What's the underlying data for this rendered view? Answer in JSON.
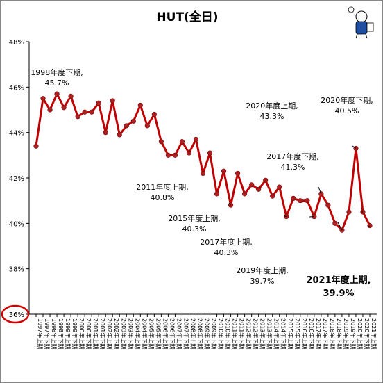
{
  "chart_data": {
    "type": "line",
    "title": "HUT(全日)",
    "xlabel": "",
    "ylabel": "",
    "ylim": [
      36,
      48
    ],
    "yticks": [
      "36%",
      "38%",
      "40%",
      "42%",
      "44%",
      "46%",
      "48%"
    ],
    "grid": false,
    "line_color": "#c00000",
    "marker_color": "#b02020",
    "highlight_tick": "36%",
    "categories": [
      "1997年上期",
      "1997年下期",
      "1998年上期",
      "1998年下期",
      "1999年上期",
      "1999年下期",
      "2000年上期",
      "2000年下期",
      "2001年上期",
      "2001年下期",
      "2002年上期",
      "2002年下期",
      "2003年上期",
      "2003年下期",
      "2004年上期",
      "2004年下期",
      "2005年上期",
      "2005年下期",
      "2006年上期",
      "2006年下期",
      "2007年上期",
      "2007年下期",
      "2008年上期",
      "2008年下期",
      "2009年上期",
      "2009年下期",
      "2010年上期",
      "2010年下期",
      "2011年上期",
      "2011年下期",
      "2012年上期",
      "2012年下期",
      "2013年上期",
      "2013年下期",
      "2014年上期",
      "2014年下期",
      "2015年上期",
      "2015年下期",
      "2016年上期",
      "2016年下期",
      "2017年上期",
      "2017年下期",
      "2018年上期",
      "2018年下期",
      "2019年上期",
      "2019年下期",
      "2020年上期",
      "2020年下期",
      "2021年上期"
    ],
    "series": [
      {
        "values": [
          43.4,
          45.5,
          45.0,
          45.7,
          45.1,
          45.6,
          44.7,
          44.9,
          44.9,
          45.3,
          44.0,
          45.4,
          43.9,
          44.3,
          44.5,
          45.2,
          44.3,
          44.8,
          43.6,
          43.0,
          43.0,
          43.6,
          43.1,
          43.7,
          42.2,
          43.1,
          41.3,
          42.3,
          40.8,
          42.2,
          41.3,
          41.7,
          41.5,
          41.9,
          41.2,
          41.6,
          40.3,
          41.1,
          41.0,
          41.0,
          40.3,
          41.3,
          40.8,
          40.0,
          39.7,
          40.5,
          43.3,
          40.5,
          39.9
        ]
      }
    ],
    "annotations": [
      {
        "index": 3,
        "line1": "1998年度下期,",
        "line2": "45.7%",
        "style": "normal"
      },
      {
        "index": 28,
        "line1": "2011年度上期,",
        "line2": "40.8%",
        "style": "normal"
      },
      {
        "index": 36,
        "line1": "2015年度上期,",
        "line2": "40.3%",
        "style": "normal"
      },
      {
        "index": 40,
        "line1": "2017年度上期,",
        "line2": "40.3%",
        "style": "normal"
      },
      {
        "index": 41,
        "line1": "2017年度下期,",
        "line2": "41.3%",
        "style": "normal"
      },
      {
        "index": 44,
        "line1": "2019年度上期,",
        "line2": "39.7%",
        "style": "normal"
      },
      {
        "index": 46,
        "line1": "2020年度上期,",
        "line2": "43.3%",
        "style": "normal"
      },
      {
        "index": 47,
        "line1": "2020年度下期,",
        "line2": "40.5%",
        "style": "normal"
      },
      {
        "index": 48,
        "line1": "2021年度上期,",
        "line2": "39.9%",
        "style": "big"
      }
    ]
  }
}
